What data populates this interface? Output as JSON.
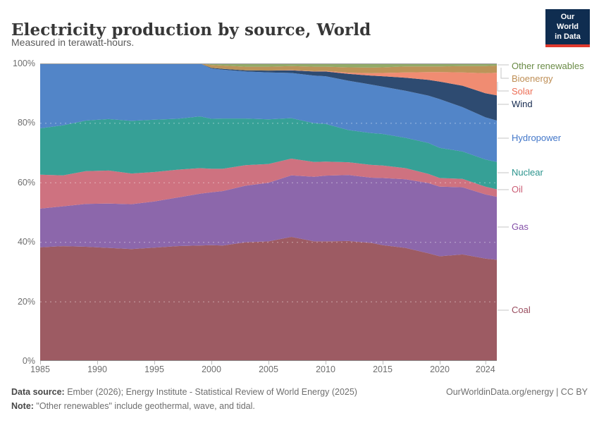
{
  "header": {
    "logo": {
      "line1": "Our World",
      "line2": "in Data",
      "bg": "#0f2d50",
      "accent": "#e0392e"
    }
  },
  "chart_data": {
    "type": "area",
    "stacked": true,
    "normalized_percent": true,
    "title": "Electricity production by source, World",
    "subtitle": "Measured in terawatt-hours.",
    "xlim": [
      1985,
      2025
    ],
    "ylim": [
      0,
      100
    ],
    "grid": "horizontal-dashed",
    "legend_position": "right",
    "x": [
      1985,
      1987,
      1989,
      1991,
      1993,
      1995,
      1997,
      1999,
      2000,
      2001,
      2003,
      2005,
      2007,
      2009,
      2010,
      2012,
      2014,
      2015,
      2017,
      2019,
      2020,
      2022,
      2024,
      2025
    ],
    "series": [
      {
        "name": "Coal",
        "color": "#9d5b63",
        "label_color": "#9a4e5f",
        "values": [
          38.2,
          38.6,
          38.4,
          38.0,
          37.6,
          38.1,
          38.6,
          38.8,
          38.9,
          38.8,
          39.9,
          40.2,
          41.7,
          40.2,
          40.2,
          40.3,
          39.7,
          38.9,
          38.0,
          36.2,
          35.2,
          35.8,
          34.4,
          34.0
        ]
      },
      {
        "name": "Gas",
        "color": "#8c67ab",
        "label_color": "#8450a8",
        "values": [
          13.0,
          13.4,
          14.4,
          14.9,
          15.1,
          15.5,
          16.3,
          17.4,
          17.8,
          18.3,
          19.0,
          19.7,
          20.7,
          21.7,
          22.1,
          22.2,
          21.9,
          22.6,
          23.1,
          23.6,
          23.4,
          22.6,
          21.6,
          21.2
        ]
      },
      {
        "name": "Oil",
        "color": "#ce7280",
        "label_color": "#cb5e76",
        "values": [
          11.4,
          10.4,
          11.0,
          11.1,
          10.3,
          9.9,
          9.4,
          8.6,
          7.9,
          7.5,
          6.9,
          6.3,
          5.6,
          5.0,
          4.7,
          4.3,
          4.3,
          4.2,
          3.7,
          3.1,
          2.9,
          2.8,
          2.6,
          2.5
        ]
      },
      {
        "name": "Nuclear",
        "color": "#36a096",
        "label_color": "#2b948d",
        "values": [
          15.6,
          16.8,
          17.0,
          17.3,
          17.7,
          17.6,
          17.1,
          17.4,
          16.8,
          16.9,
          15.7,
          15.0,
          13.6,
          13.0,
          12.7,
          10.8,
          10.7,
          10.6,
          10.2,
          10.4,
          10.1,
          9.2,
          9.1,
          9.2
        ]
      },
      {
        "name": "Hydropower",
        "color": "#5285c8",
        "label_color": "#4377c9",
        "values": [
          21.8,
          20.8,
          19.2,
          18.7,
          19.3,
          18.9,
          18.6,
          17.8,
          16.9,
          16.4,
          15.8,
          15.8,
          15.2,
          16.0,
          16.0,
          16.6,
          16.3,
          15.9,
          15.8,
          15.9,
          16.4,
          14.9,
          14.2,
          13.9
        ]
      },
      {
        "name": "Wind",
        "color": "#2e4b71",
        "label_color": "#152a4f",
        "values": [
          0,
          0,
          0,
          0,
          0,
          0,
          0,
          0,
          0.2,
          0.3,
          0.4,
          0.6,
          0.9,
          1.4,
          1.6,
          2.3,
          3.0,
          3.5,
          4.4,
          5.3,
          5.9,
          7.2,
          8.1,
          8.5
        ]
      },
      {
        "name": "Solar",
        "color": "#f08c72",
        "label_color": "#ed6e55",
        "values": [
          0,
          0,
          0,
          0,
          0,
          0,
          0,
          0,
          0.0,
          0.0,
          0.0,
          0.0,
          0.1,
          0.1,
          0.2,
          0.4,
          0.8,
          1.1,
          1.8,
          2.6,
          3.2,
          4.5,
          6.7,
          7.6
        ]
      },
      {
        "name": "Bioenergy",
        "color": "#bc9459",
        "label_color": "#be8e55",
        "values": [
          0,
          0,
          0,
          0,
          0,
          0,
          0,
          0,
          1.0,
          1.1,
          1.2,
          1.3,
          1.3,
          1.5,
          1.4,
          1.8,
          1.9,
          1.9,
          2.0,
          1.9,
          1.9,
          2.1,
          2.4,
          2.4
        ]
      },
      {
        "name": "Other renewables",
        "color": "#92ab68",
        "label_color": "#6a8b46",
        "values": [
          0,
          0,
          0,
          0,
          0,
          0,
          0,
          0,
          0.5,
          0.7,
          1.1,
          1.1,
          0.9,
          1.1,
          1.1,
          1.3,
          1.4,
          1.3,
          1.0,
          1.0,
          1.0,
          0.9,
          0.9,
          0.7
        ]
      }
    ],
    "y_ticks": [
      {
        "v": 0,
        "label": "0%"
      },
      {
        "v": 20,
        "label": "20%"
      },
      {
        "v": 40,
        "label": "40%"
      },
      {
        "v": 60,
        "label": "60%"
      },
      {
        "v": 80,
        "label": "80%"
      },
      {
        "v": 100,
        "label": "100%"
      }
    ],
    "x_ticks": [
      {
        "v": 1985,
        "label": "1985"
      },
      {
        "v": 1990,
        "label": "1990"
      },
      {
        "v": 1995,
        "label": "1995"
      },
      {
        "v": 2000,
        "label": "2000"
      },
      {
        "v": 2005,
        "label": "2005"
      },
      {
        "v": 2010,
        "label": "2010"
      },
      {
        "v": 2015,
        "label": "2015"
      },
      {
        "v": 2020,
        "label": "2020"
      },
      {
        "v": 2024,
        "label": "2024"
      }
    ],
    "y_gridlines": [
      20,
      40,
      60,
      80
    ]
  },
  "footer": {
    "source_label": "Data source:",
    "source_text": " Ember (2026); Energy Institute - Statistical Review of World Energy (2025)",
    "note_label": "Note:",
    "note_text": " \"Other renewables\" include geothermal, wave, and tidal.",
    "link": "OurWorldinData.org/energy | CC BY"
  }
}
